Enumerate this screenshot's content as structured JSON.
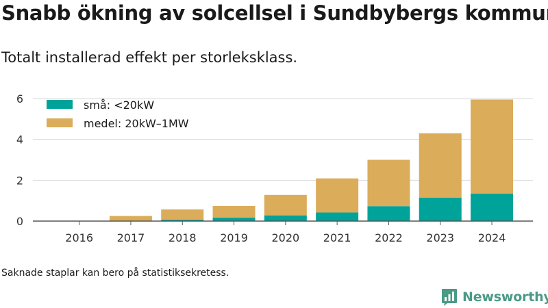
{
  "title": "Snabb ökning av solcellsel i Sundbybergs kommun",
  "subtitle": "Totalt installerad effekt per storleksklass.",
  "footnote": "Saknade staplar kan bero på statistiksekretess.",
  "brand": {
    "name": "Newsworthy",
    "icon": "newsworthy-logo-icon",
    "color": "#4a9a86"
  },
  "chart_data": {
    "type": "bar",
    "stacked": true,
    "categories": [
      "2016",
      "2017",
      "2018",
      "2019",
      "2020",
      "2021",
      "2022",
      "2023",
      "2024"
    ],
    "series": [
      {
        "name": "små: <20kW",
        "color": "#00a39a",
        "values": [
          0.0,
          0.02,
          0.07,
          0.17,
          0.28,
          0.42,
          0.73,
          1.15,
          1.35
        ]
      },
      {
        "name": "medel: 20kW–1MW",
        "color": "#dbac5a",
        "values": [
          0.0,
          0.23,
          0.5,
          0.57,
          1.0,
          1.67,
          2.27,
          3.15,
          4.6
        ]
      }
    ],
    "yticks": [
      0,
      2,
      4,
      6
    ],
    "ylim": [
      0,
      6.3
    ],
    "grid": true,
    "legend_position": "top-left",
    "xlabel": "",
    "ylabel": ""
  }
}
